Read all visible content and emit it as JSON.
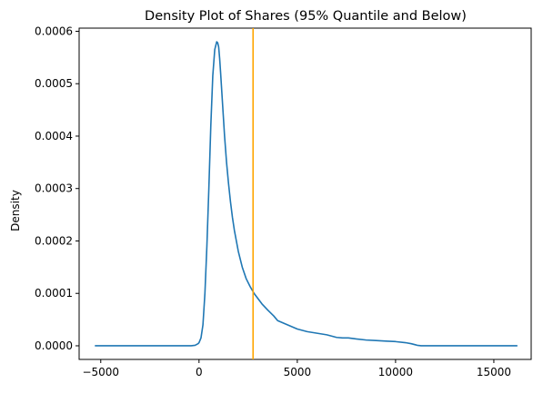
{
  "chart_data": {
    "type": "line",
    "title": "Density Plot of Shares (95% Quantile and Below)",
    "xlabel": "",
    "ylabel": "Density",
    "xlim": [
      -6100,
      16900
    ],
    "ylim": [
      -2.6e-05,
      0.000606
    ],
    "xticks": [
      -5000,
      0,
      5000,
      10000,
      15000
    ],
    "xtick_labels": [
      "−5000",
      "0",
      "5000",
      "10000",
      "15000"
    ],
    "yticks": [
      0,
      0.0001,
      0.0002,
      0.0003,
      0.0004,
      0.0005,
      0.0006
    ],
    "ytick_labels": [
      "0.0000",
      "0.0001",
      "0.0002",
      "0.0003",
      "0.0004",
      "0.0005",
      "0.0006"
    ],
    "grid": false,
    "colors": {
      "density": "#1f77b4",
      "vline": "#ffa500"
    },
    "series": [
      {
        "x": [
          -5300,
          -4000,
          -2000,
          -1000,
          -400,
          -200,
          -50,
          0,
          100,
          200,
          300,
          400,
          500,
          600,
          700,
          800,
          900,
          950,
          1000,
          1050,
          1100,
          1200,
          1300,
          1400,
          1500,
          1600,
          1700,
          1800,
          2000,
          2200,
          2400,
          2600,
          2800,
          3000,
          3200,
          3500,
          3800,
          4000,
          4500,
          5000,
          5500,
          6000,
          6500,
          7000,
          7300,
          7600,
          8000,
          8500,
          9000,
          9500,
          10000,
          10500,
          10800,
          11000,
          11100,
          11300,
          12000,
          13000,
          14000,
          15000,
          16200
        ],
        "values": [
          0.0,
          0.0,
          0.0,
          0.0,
          0.0,
          1e-06,
          4e-06,
          6e-06,
          1.5e-05,
          4e-05,
          0.0001,
          0.00019,
          0.0003,
          0.00042,
          0.000515,
          0.000565,
          0.00058,
          0.000578,
          0.00057,
          0.000548,
          0.00052,
          0.00046,
          0.0004,
          0.00035,
          0.00031,
          0.000275,
          0.000245,
          0.00022,
          0.00018,
          0.00015,
          0.000128,
          0.000113,
          0.0001,
          9e-05,
          8e-05,
          6.8e-05,
          5.7e-05,
          4.8e-05,
          4e-05,
          3.2e-05,
          2.7e-05,
          2.4e-05,
          2.1e-05,
          1.6e-05,
          1.5e-05,
          1.5e-05,
          1.3e-05,
          1.1e-05,
          1e-05,
          9e-06,
          8e-06,
          6e-06,
          4e-06,
          2e-06,
          1e-06,
          0.0,
          0.0,
          0.0,
          0.0,
          0.0,
          0.0
        ]
      }
    ],
    "vline": {
      "x": 2750
    }
  }
}
